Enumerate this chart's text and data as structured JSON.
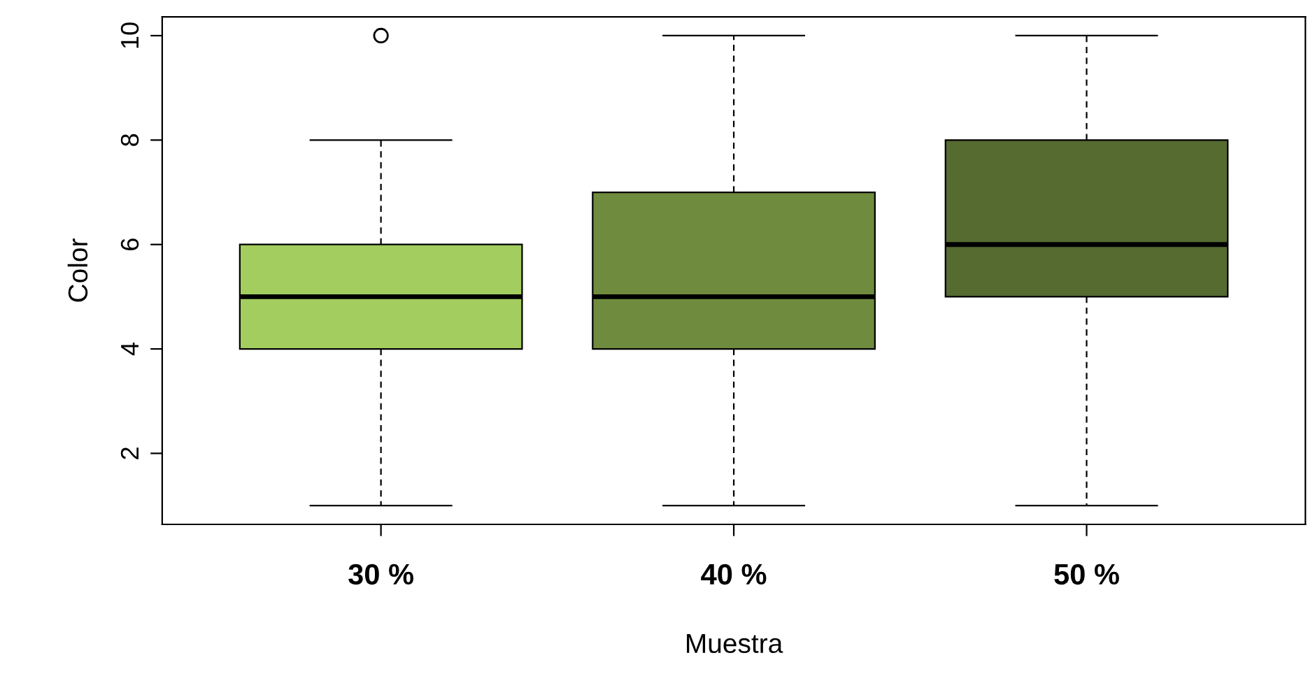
{
  "chart_data": {
    "type": "box",
    "xlabel": "Muestra",
    "ylabel": "Color",
    "categories": [
      "30 %",
      "40 %",
      "50 %"
    ],
    "colors": [
      "#a3cd5f",
      "#6f8b3d",
      "#566b30"
    ],
    "boxes": [
      {
        "low": 1,
        "q1": 4,
        "median": 5,
        "q3": 6,
        "high": 8,
        "outliers": [
          10
        ]
      },
      {
        "low": 1,
        "q1": 4,
        "median": 5,
        "q3": 7,
        "high": 10
      },
      {
        "low": 1,
        "q1": 5,
        "median": 6,
        "q3": 8,
        "high": 10
      }
    ],
    "ylim": [
      0.64,
      10.36
    ],
    "yticks": [
      2,
      4,
      6,
      8,
      10
    ],
    "grid": false
  }
}
